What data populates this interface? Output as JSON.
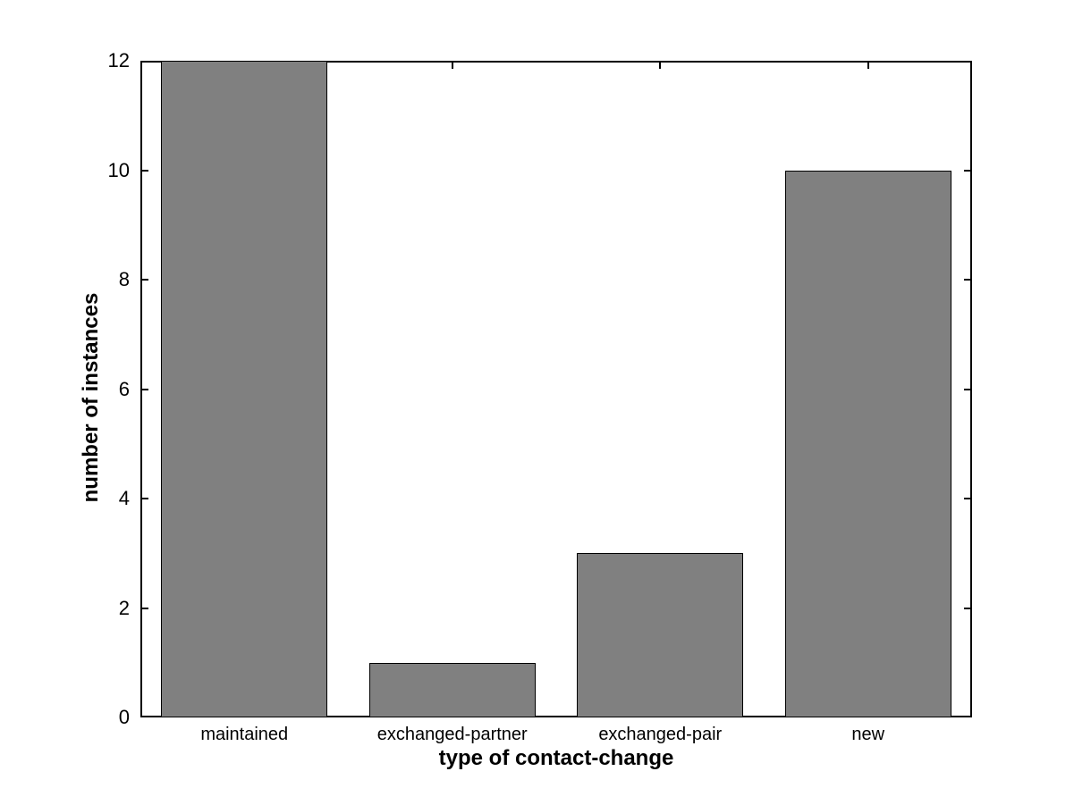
{
  "chart_data": {
    "type": "bar",
    "title": "",
    "categories": [
      "maintained",
      "exchanged-partner",
      "exchanged-pair",
      "new"
    ],
    "values": [
      12,
      1,
      3,
      10
    ],
    "xlabel": "type of contact-change",
    "ylabel": "number of instances",
    "ylim": [
      0,
      12
    ],
    "yticks": [
      0,
      2,
      4,
      6,
      8,
      10,
      12
    ],
    "grid": false,
    "legend": null,
    "bar_width_fraction": 0.8,
    "colors": {
      "bar_fill": "#808080",
      "bar_edge": "#000000",
      "axis": "#000000",
      "background": "#ffffff",
      "text": "#000000"
    }
  }
}
